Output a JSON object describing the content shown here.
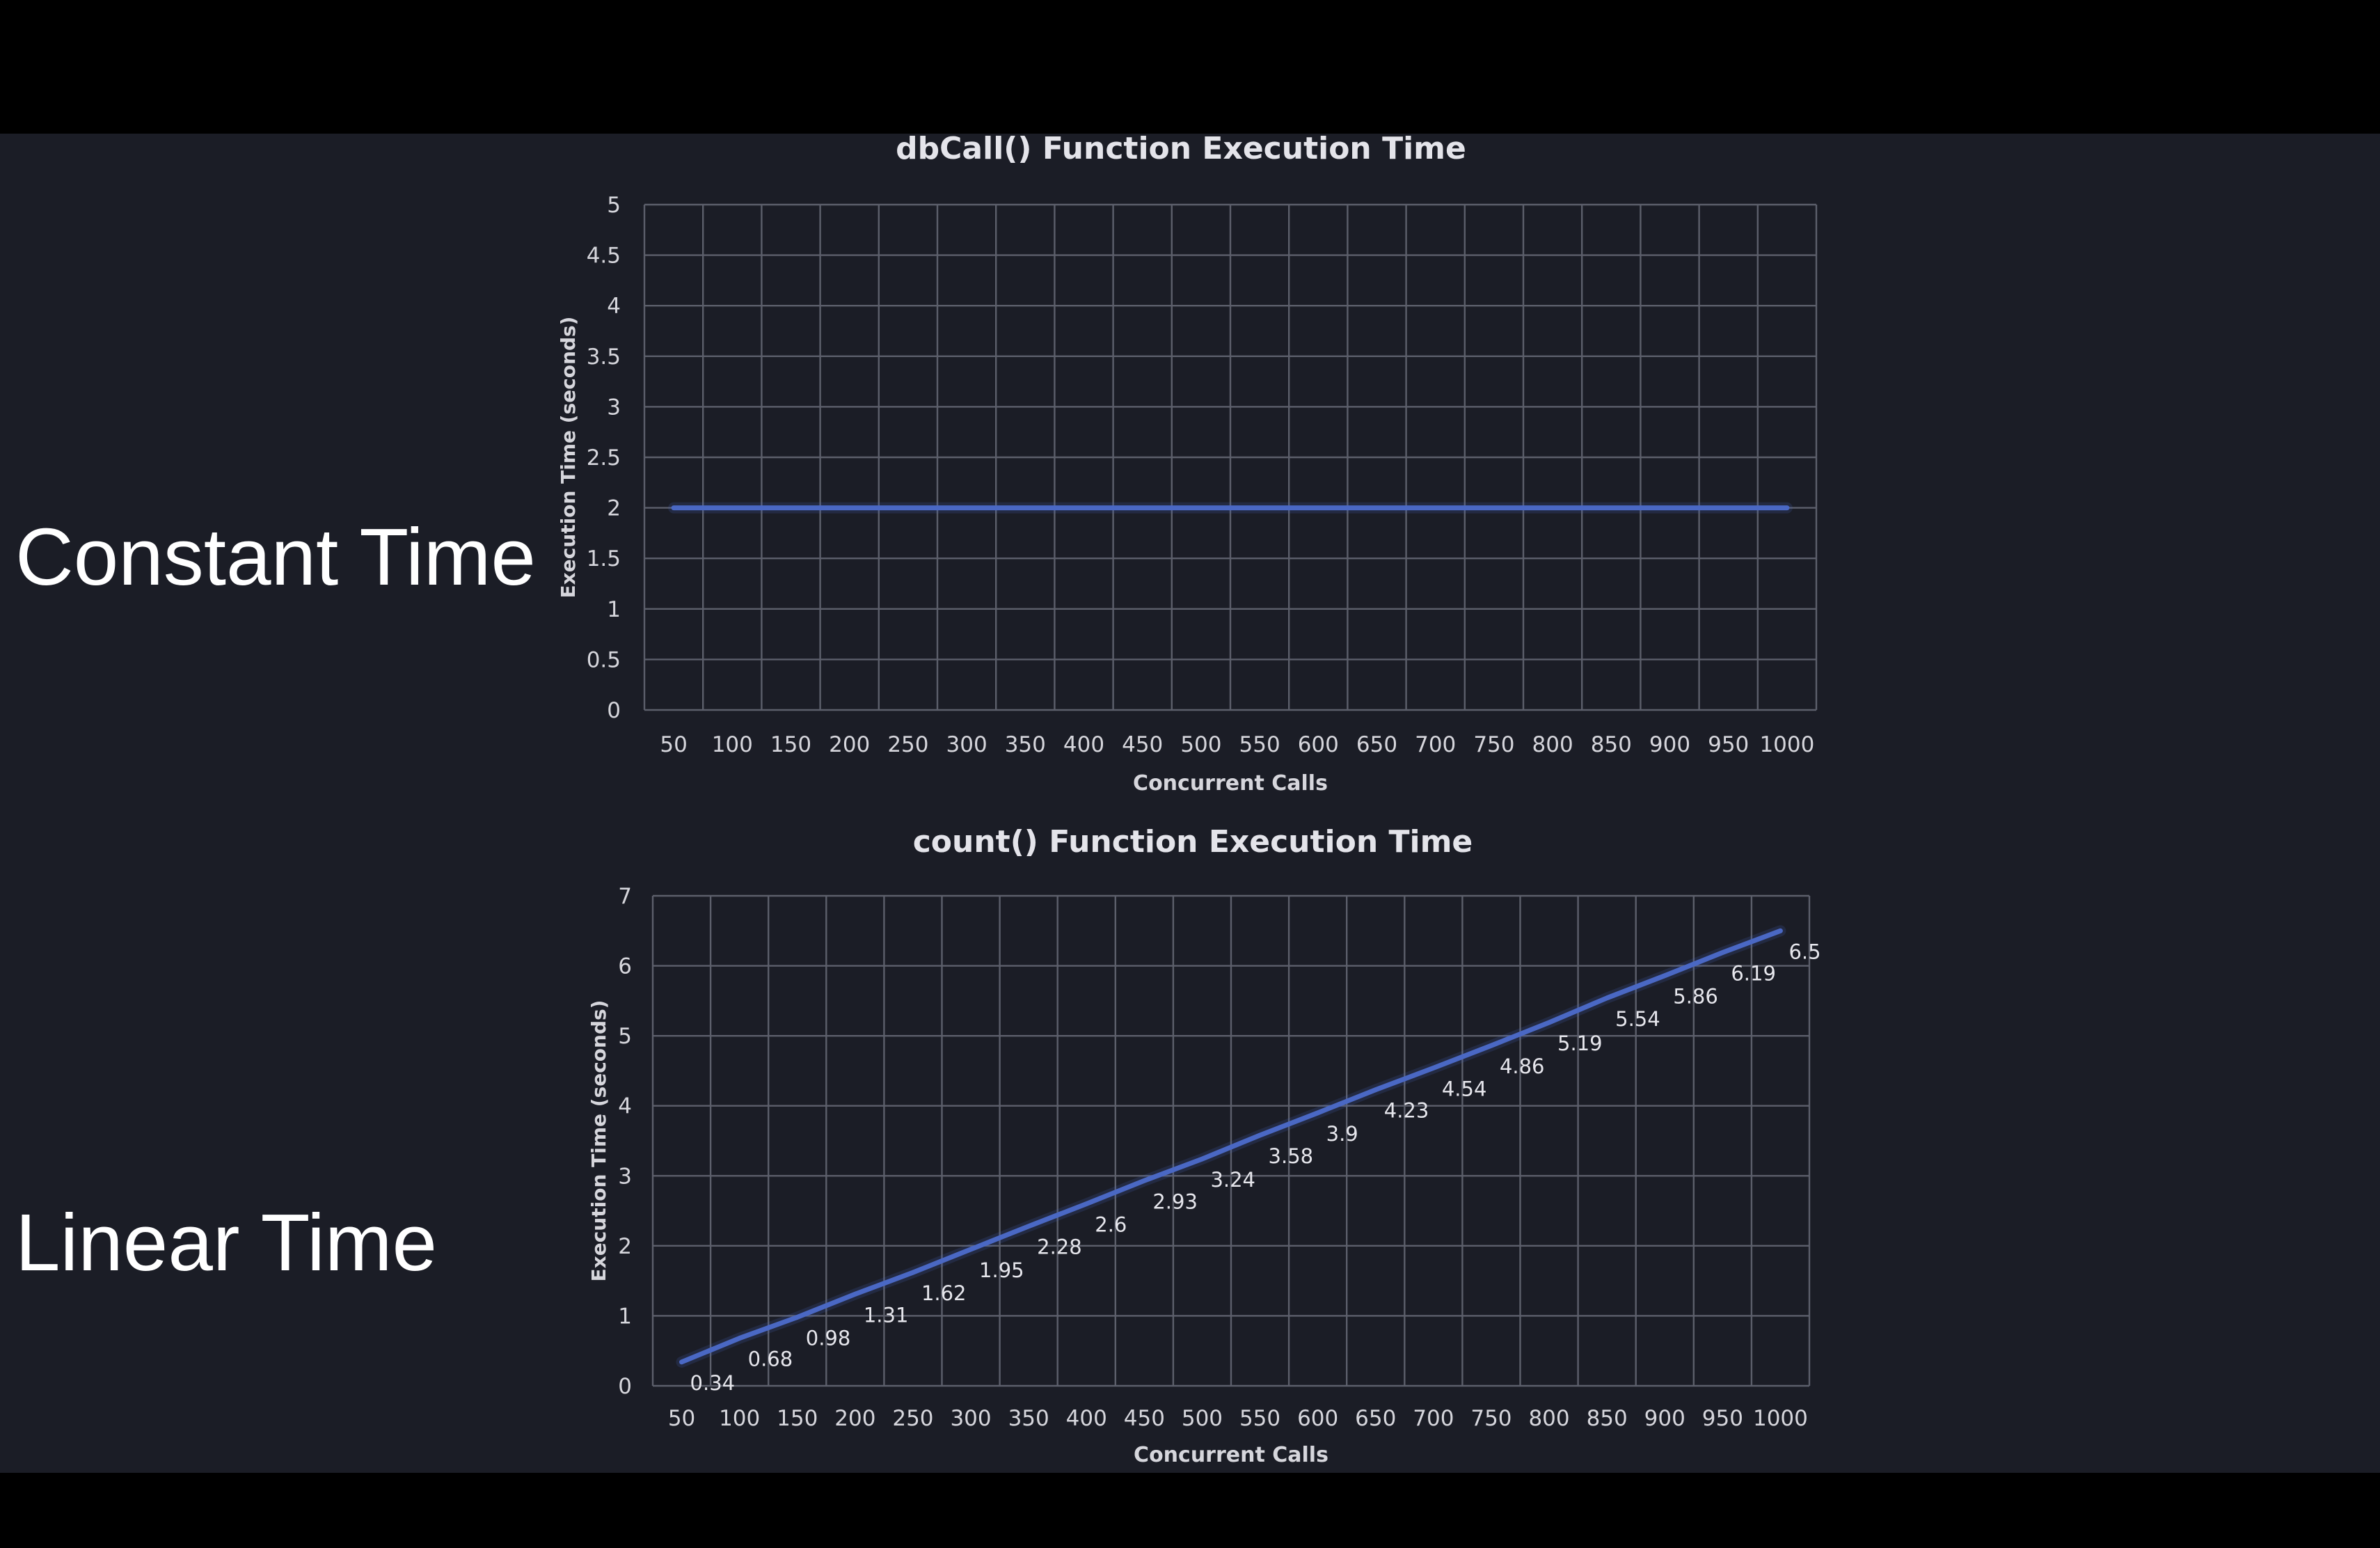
{
  "slide": {
    "left_labels": [
      "Constant Time",
      "Linear Time"
    ]
  },
  "chart_data": [
    {
      "type": "line",
      "title": "dbCall() Function Execution Time",
      "xlabel": "Concurrent Calls",
      "ylabel": "Execution Time (seconds)",
      "categories": [
        "50",
        "100",
        "150",
        "200",
        "250",
        "300",
        "350",
        "400",
        "450",
        "500",
        "550",
        "600",
        "650",
        "700",
        "750",
        "800",
        "850",
        "900",
        "950",
        "1000"
      ],
      "series": [
        {
          "values": [
            2,
            2,
            2,
            2,
            2,
            2,
            2,
            2,
            2,
            2,
            2,
            2,
            2,
            2,
            2,
            2,
            2,
            2,
            2,
            2
          ],
          "color": "#4a68c4"
        }
      ],
      "ylim": [
        0,
        5
      ],
      "yticks": [
        "0",
        "0.5",
        "1",
        "1.5",
        "2",
        "2.5",
        "3",
        "3.5",
        "4",
        "4.5",
        "5"
      ],
      "grid": true,
      "data_labels": false,
      "legend": "none"
    },
    {
      "type": "line",
      "title": "count() Function Execution Time",
      "xlabel": "Concurrent Calls",
      "ylabel": "Execution Time (seconds)",
      "categories": [
        "50",
        "100",
        "150",
        "200",
        "250",
        "300",
        "350",
        "400",
        "450",
        "500",
        "550",
        "600",
        "650",
        "700",
        "750",
        "800",
        "850",
        "900",
        "950",
        "1000"
      ],
      "series": [
        {
          "values": [
            0.34,
            0.68,
            0.98,
            1.31,
            1.62,
            1.95,
            2.28,
            2.6,
            2.93,
            3.24,
            3.58,
            3.9,
            4.23,
            4.54,
            4.86,
            5.19,
            5.54,
            5.86,
            6.19,
            6.5
          ],
          "color": "#4a68c4"
        }
      ],
      "ylim": [
        0,
        7
      ],
      "yticks": [
        "0",
        "1",
        "2",
        "3",
        "4",
        "5",
        "6",
        "7"
      ],
      "grid": true,
      "data_labels": true,
      "legend": "none"
    }
  ]
}
